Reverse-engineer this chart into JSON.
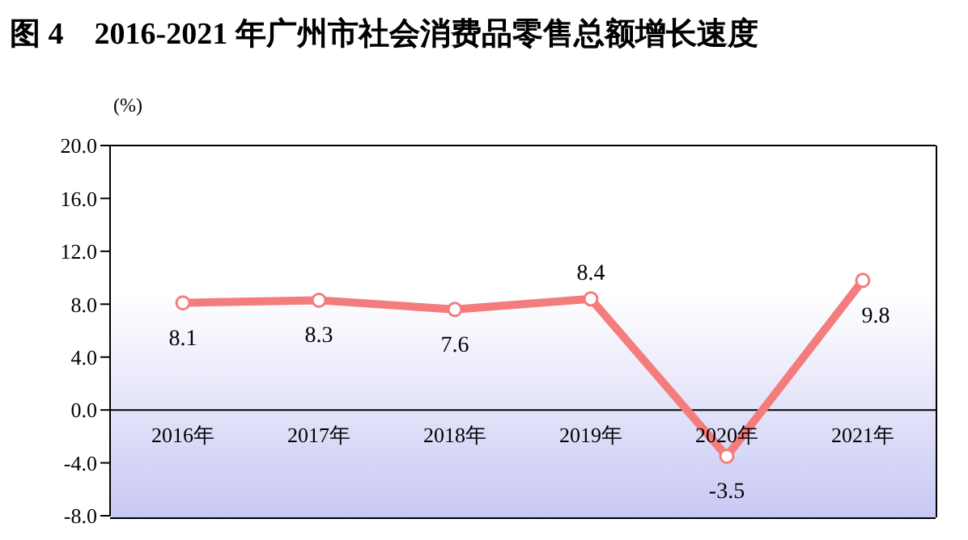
{
  "chart_data": {
    "type": "line",
    "title": "图 4　2016-2021 年广州市社会消费品零售总额增长速度",
    "ylabel": "(%)",
    "categories": [
      "2016年",
      "2017年",
      "2018年",
      "2019年",
      "2020年",
      "2021年"
    ],
    "series": [
      {
        "color": "#f47c7c",
        "values": [
          8.1,
          8.3,
          7.6,
          8.4,
          -3.5,
          9.8
        ]
      }
    ],
    "ylim": [
      -8,
      20
    ],
    "yticks": [
      {
        "value": -8,
        "label": "-8.0"
      },
      {
        "value": -4,
        "label": "-4.0"
      },
      {
        "value": 0,
        "label": "0.0"
      },
      {
        "value": 4,
        "label": "4.0"
      },
      {
        "value": 8,
        "label": "8.0"
      },
      {
        "value": 12,
        "label": "12.0"
      },
      {
        "value": 16,
        "label": "16.0"
      },
      {
        "value": 20,
        "label": "20.0"
      }
    ],
    "data_labels": true,
    "marker": "circle",
    "line_style": "solid",
    "grid": false,
    "legend": false
  }
}
